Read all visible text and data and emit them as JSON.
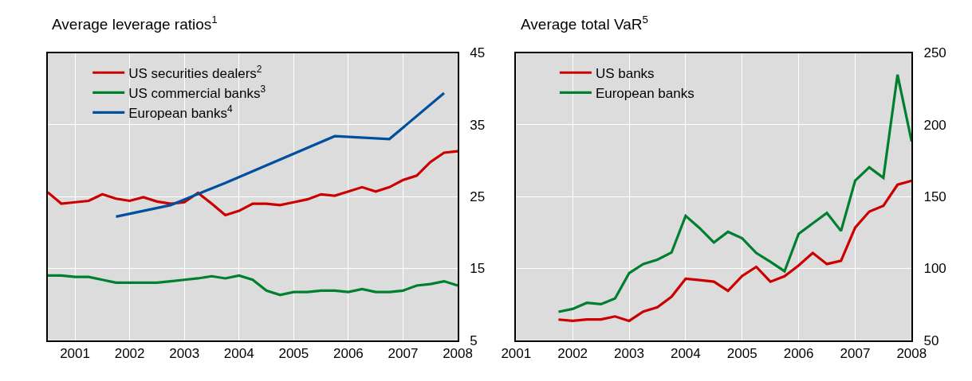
{
  "chart_data": [
    {
      "type": "line",
      "title": "Average leverage ratios$^{1}$",
      "xlim": [
        2000.5,
        2008
      ],
      "xticks": [
        2001,
        2002,
        2003,
        2004,
        2005,
        2006,
        2007,
        2008
      ],
      "ylim": [
        5,
        45
      ],
      "yticks": [
        5,
        15,
        25,
        35,
        45
      ],
      "grid": true,
      "legend": "top left",
      "marker": "none",
      "line_style": "solid",
      "series": [
        {
          "name": "US securities dealers$^{2}$",
          "color": "#cc0000",
          "x": [
            2000.5,
            2000.75,
            2001,
            2001.25,
            2001.5,
            2001.75,
            2002,
            2002.25,
            2002.5,
            2002.75,
            2003,
            2003.25,
            2003.5,
            2003.75,
            2004,
            2004.25,
            2004.5,
            2004.75,
            2005,
            2005.25,
            2005.5,
            2005.75,
            2006,
            2006.25,
            2006.5,
            2006.75,
            2007,
            2007.25,
            2007.5,
            2007.75,
            2008
          ],
          "values": [
            25.6,
            24.0,
            24.2,
            24.4,
            25.3,
            24.7,
            24.4,
            24.9,
            24.3,
            24.0,
            24.2,
            25.5,
            24.0,
            22.4,
            23.0,
            24.0,
            24.0,
            23.8,
            24.2,
            24.6,
            25.3,
            25.1,
            25.7,
            26.3,
            25.7,
            26.3,
            27.3,
            27.9,
            29.8,
            31.1,
            31.3
          ]
        },
        {
          "name": "US commercial banks$^{3}$",
          "color": "#00802f",
          "x": [
            2000.5,
            2000.75,
            2001,
            2001.25,
            2001.5,
            2001.75,
            2002,
            2002.25,
            2002.5,
            2002.75,
            2003,
            2003.25,
            2003.5,
            2003.75,
            2004,
            2004.25,
            2004.5,
            2004.75,
            2005,
            2005.25,
            2005.5,
            2005.75,
            2006,
            2006.25,
            2006.5,
            2006.75,
            2007,
            2007.25,
            2007.5,
            2007.75,
            2008
          ],
          "values": [
            14.0,
            14.0,
            13.8,
            13.8,
            13.4,
            13.0,
            13.0,
            13.0,
            13.0,
            13.2,
            13.4,
            13.6,
            13.9,
            13.6,
            14.0,
            13.4,
            11.9,
            11.3,
            11.7,
            11.7,
            11.9,
            11.9,
            11.7,
            12.1,
            11.7,
            11.7,
            11.9,
            12.6,
            12.8,
            13.2,
            12.6
          ]
        },
        {
          "name": "European banks$^{4}$",
          "color": "#0050a0",
          "x": [
            2001.75,
            2002.75,
            2003.75,
            2005.75,
            2006.75,
            2007.75
          ],
          "values": [
            22.2,
            23.8,
            26.9,
            33.4,
            33.0,
            39.4
          ]
        }
      ]
    },
    {
      "type": "line",
      "title": "Average total VaR$^{5}$",
      "xlim": [
        2001,
        2008
      ],
      "xticks": [
        2001,
        2002,
        2003,
        2004,
        2005,
        2006,
        2007,
        2008
      ],
      "ylim": [
        50,
        250
      ],
      "yticks": [
        50,
        100,
        150,
        200,
        250
      ],
      "grid": true,
      "legend": "top left",
      "marker": "none",
      "line_style": "solid",
      "series": [
        {
          "name": "US banks",
          "color": "#cc0000",
          "x": [
            2001.75,
            2002,
            2002.25,
            2002.5,
            2002.75,
            2003,
            2003.25,
            2003.5,
            2003.75,
            2004,
            2004.25,
            2004.5,
            2004.75,
            2005,
            2005.25,
            2005.5,
            2005.75,
            2006,
            2006.25,
            2006.5,
            2006.75,
            2007,
            2007.25,
            2007.5,
            2007.75,
            2008
          ],
          "values": [
            64.3,
            63.4,
            64.4,
            64.4,
            66.5,
            63.4,
            69.9,
            72.9,
            80.2,
            92.7,
            91.8,
            90.7,
            84.3,
            94.7,
            101,
            90.7,
            94.5,
            102,
            110.7,
            103,
            105.3,
            128.3,
            139.5,
            143.6,
            158.2,
            161
          ]
        },
        {
          "name": "European banks",
          "color": "#00802f",
          "x": [
            2001.75,
            2002,
            2002.25,
            2002.5,
            2002.75,
            2003,
            2003.25,
            2003.5,
            2003.75,
            2004,
            2004.25,
            2004.5,
            2004.75,
            2005,
            2005.25,
            2005.5,
            2005.75,
            2006,
            2006.25,
            2006.5,
            2006.75,
            2007,
            2007.25,
            2007.5,
            2007.75,
            2008
          ],
          "values": [
            69.7,
            71.7,
            76.0,
            75.0,
            79.0,
            96.6,
            103,
            106,
            111,
            136.5,
            127.9,
            118,
            125.4,
            120.9,
            110.7,
            104.5,
            98,
            124,
            131.3,
            138.5,
            126,
            161,
            170.3,
            163,
            234.8,
            188.3
          ]
        }
      ]
    }
  ]
}
